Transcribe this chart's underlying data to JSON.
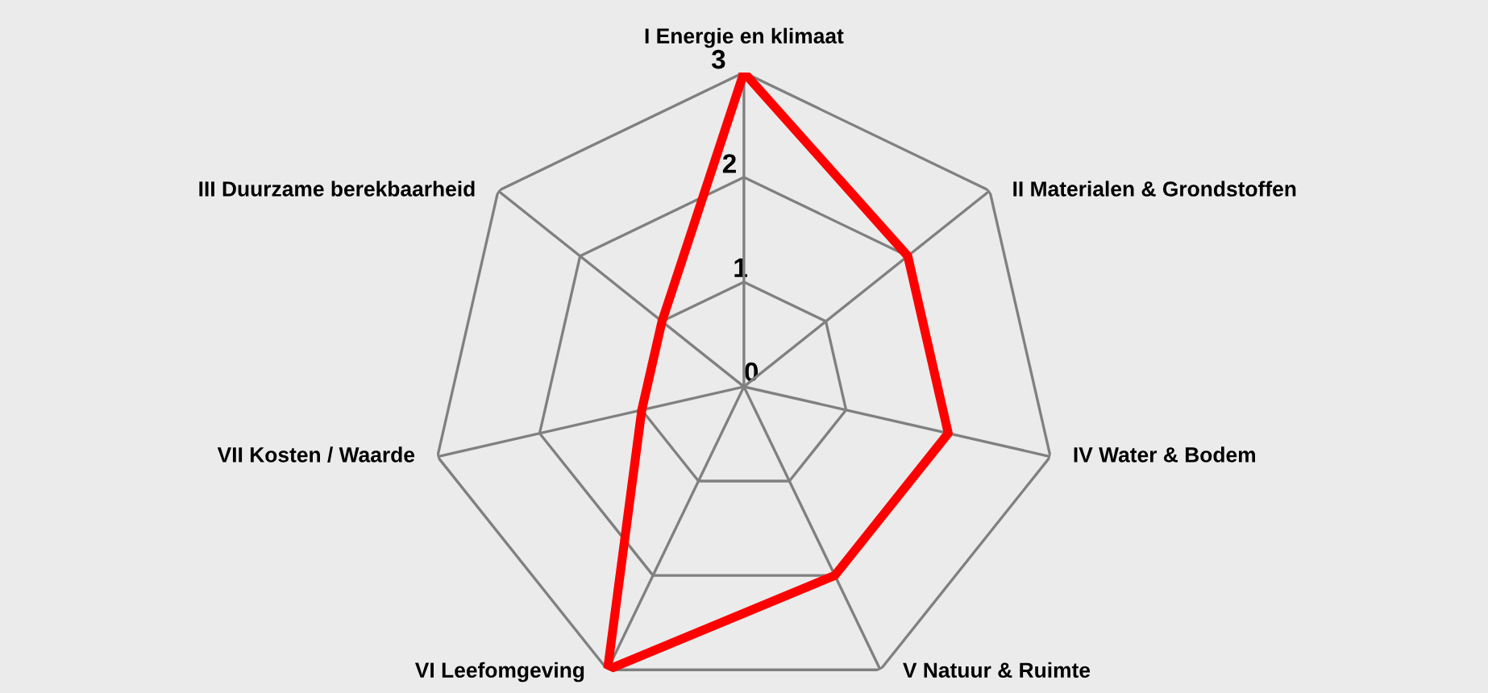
{
  "chart_data": {
    "type": "radar",
    "categories": [
      "I Energie en klimaat",
      "II Materialen & Grondstoffen",
      "IV Water & Bodem",
      "V Natuur & Ruimte",
      "VI Leefomgeving",
      "VII Kosten / Waarde",
      "III Duurzame berekbaarheid"
    ],
    "series": [
      {
        "color": "#ff0000",
        "values": [
          3,
          2,
          2,
          2,
          3,
          1,
          1
        ]
      }
    ],
    "ylim": [
      0,
      3
    ],
    "yticks": [
      0,
      1,
      2,
      3
    ],
    "grid": true,
    "marker": "none",
    "line_style": "solid"
  }
}
